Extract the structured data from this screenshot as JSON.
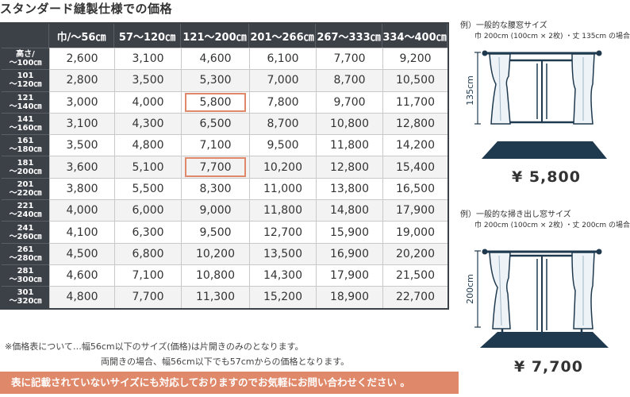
{
  "title": "スタンダード縫製仕様での価格",
  "table": {
    "width_headers": [
      "巾/〜56㎝",
      "57〜120㎝",
      "121〜200㎝",
      "201〜266㎝",
      "267〜333㎝",
      "334〜400㎝"
    ],
    "rows": [
      {
        "label_top": "高さ/",
        "label_bottom": "〜100㎝",
        "prices": [
          "2,600",
          "3,100",
          "4,600",
          "6,100",
          "7,700",
          "9,200"
        ]
      },
      {
        "label_top": "101",
        "label_bottom": "〜120㎝",
        "prices": [
          "2,800",
          "3,500",
          "5,300",
          "7,000",
          "8,700",
          "10,500"
        ]
      },
      {
        "label_top": "121",
        "label_bottom": "〜140㎝",
        "prices": [
          "3,000",
          "4,000",
          "5,800",
          "7,800",
          "9,700",
          "11,700"
        ]
      },
      {
        "label_top": "141",
        "label_bottom": "〜160㎝",
        "prices": [
          "3,100",
          "4,300",
          "6,500",
          "8,700",
          "10,800",
          "12,800"
        ]
      },
      {
        "label_top": "161",
        "label_bottom": "〜180㎝",
        "prices": [
          "3,500",
          "4,800",
          "7,100",
          "9,500",
          "11,800",
          "14,200"
        ]
      },
      {
        "label_top": "181",
        "label_bottom": "〜200㎝",
        "prices": [
          "3,600",
          "5,100",
          "7,700",
          "10,200",
          "12,800",
          "15,400"
        ]
      },
      {
        "label_top": "201",
        "label_bottom": "〜220㎝",
        "prices": [
          "3,800",
          "5,500",
          "8,300",
          "11,000",
          "13,800",
          "16,500"
        ]
      },
      {
        "label_top": "221",
        "label_bottom": "〜240㎝",
        "prices": [
          "4,000",
          "6,000",
          "9,000",
          "11,800",
          "14,800",
          "17,900"
        ]
      },
      {
        "label_top": "241",
        "label_bottom": "〜260㎝",
        "prices": [
          "4,100",
          "6,300",
          "9,500",
          "12,700",
          "15,900",
          "19,000"
        ]
      },
      {
        "label_top": "261",
        "label_bottom": "〜280㎝",
        "prices": [
          "4,500",
          "6,800",
          "10,200",
          "13,500",
          "16,900",
          "20,200"
        ]
      },
      {
        "label_top": "281",
        "label_bottom": "〜300㎝",
        "prices": [
          "4,600",
          "7,100",
          "10,800",
          "14,300",
          "17,900",
          "21,500"
        ]
      },
      {
        "label_top": "301",
        "label_bottom": "〜320㎝",
        "prices": [
          "4,800",
          "7,700",
          "11,300",
          "15,200",
          "18,900",
          "22,700"
        ]
      }
    ]
  },
  "notes": {
    "line1": "※価格表について…幅56cm以下のサイズ(価格)は片開きのみのとなります。",
    "line2": "両開きの場合、幅56cm以下でも57cmからの価格となります。"
  },
  "banner": "表に記載されていないサイズにも対応しておりますのでお気軽にお問い合わせください 。",
  "example1": {
    "caption": "例）一般的な腰窓サイズ",
    "detail": "巾 200cm (100cm × 2枚) ・丈 135cm の場合",
    "dimension": "135cm",
    "price": "¥ 5,800"
  },
  "example2": {
    "caption": "例）一般的な掃き出し窓サイズ",
    "detail": "巾 200cm (100cm × 2枚) ・丈 200cm の場合",
    "dimension": "200cm",
    "price": "¥ 7,700"
  },
  "colors": {
    "header_bg": "#3c4047",
    "accent": "#e0896a",
    "illustration": "#1f3a4f"
  }
}
